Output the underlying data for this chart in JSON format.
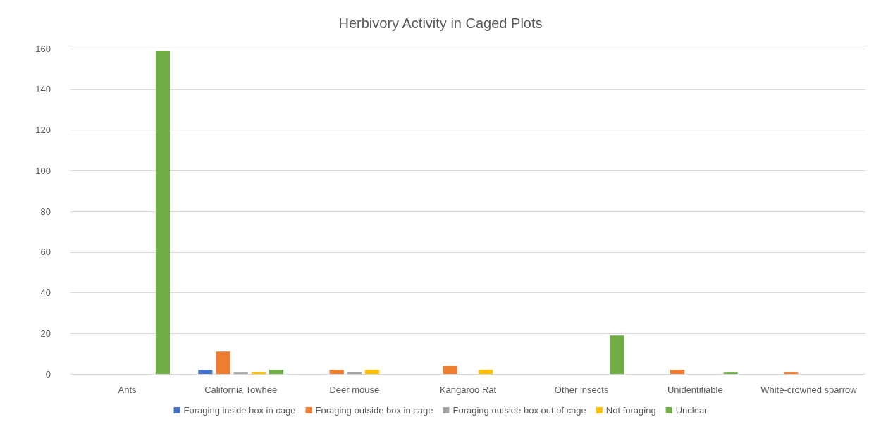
{
  "chart_data": {
    "type": "bar",
    "title": "Herbivory Activity in Caged Plots",
    "categories": [
      "Ants",
      "California Towhee",
      "Deer mouse",
      "Kangaroo Rat",
      "Other insects",
      "Unidentifiable",
      "White-crowned sparrow"
    ],
    "series": [
      {
        "name": "Foraging inside box in cage",
        "color": "#4472c4",
        "values": [
          0,
          2,
          0,
          0,
          0,
          0,
          0
        ]
      },
      {
        "name": "Foraging outside box in cage",
        "color": "#ed7d31",
        "values": [
          0,
          11,
          2,
          4,
          0,
          2,
          1
        ]
      },
      {
        "name": "Foraging outside box out of cage",
        "color": "#a5a5a5",
        "values": [
          0,
          1,
          1,
          0,
          0,
          0,
          0
        ]
      },
      {
        "name": "Not foraging",
        "color": "#ffc000",
        "values": [
          0,
          1,
          2,
          2,
          0,
          0,
          0
        ]
      },
      {
        "name": "Unclear",
        "color": "#70ad47",
        "values": [
          159,
          2,
          0,
          0,
          19,
          1,
          0
        ]
      }
    ],
    "ylim": [
      0,
      160
    ],
    "yticks": [
      0,
      20,
      40,
      60,
      80,
      100,
      120,
      140,
      160
    ],
    "grid": "y",
    "legend": "bottom"
  }
}
